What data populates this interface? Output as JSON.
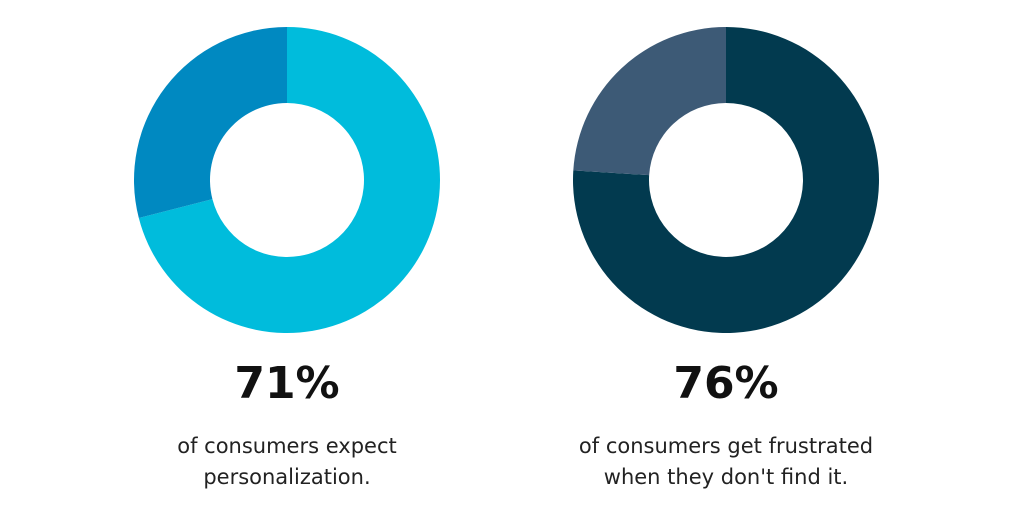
{
  "chart_data": [
    {
      "type": "donut",
      "values": [
        71,
        29
      ],
      "value_labels": [
        "71%",
        null
      ],
      "colors": [
        "#00bcdc",
        "#0089c1"
      ],
      "caption": [
        "of consumers expect",
        "personalization."
      ]
    },
    {
      "type": "donut",
      "values": [
        76,
        24
      ],
      "value_labels": [
        "76%",
        null
      ],
      "colors": [
        "#023a4f",
        "#3d5a76"
      ],
      "caption": [
        "of consumers get frustrated",
        "when they don't find it."
      ]
    }
  ]
}
